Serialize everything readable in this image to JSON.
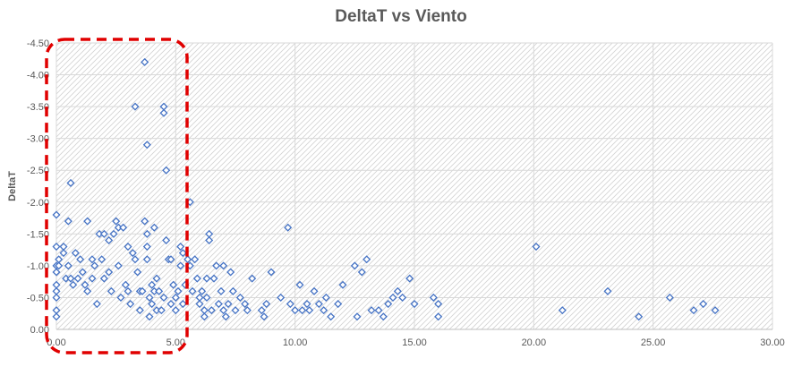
{
  "chart_data": {
    "type": "scatter",
    "title": "DeltaT vs Viento",
    "xlabel": "",
    "ylabel": "DeltaT",
    "xlim": [
      0,
      30
    ],
    "ylim": [
      0,
      -4.5
    ],
    "y_reversed": true,
    "grid": true,
    "x_ticks": [
      "0.00",
      "5.00",
      "10.00",
      "15.00",
      "20.00",
      "25.00",
      "30.00"
    ],
    "y_ticks": [
      "0.00",
      "-0.50",
      "-1.00",
      "-1.50",
      "-2.00",
      "-2.50",
      "-3.00",
      "-3.50",
      "-4.00",
      "-4.50"
    ],
    "marker_color": "#4472C4",
    "highlight_color": "#E00000",
    "series": [
      {
        "marker": "diamond",
        "points": [
          [
            0.0,
            -1.8
          ],
          [
            0.0,
            -1.3
          ],
          [
            0.0,
            -1.0
          ],
          [
            0.0,
            -0.9
          ],
          [
            0.0,
            -0.7
          ],
          [
            0.0,
            -0.6
          ],
          [
            0.0,
            -0.5
          ],
          [
            0.0,
            -0.3
          ],
          [
            0.0,
            -0.2
          ],
          [
            0.1,
            -1.1
          ],
          [
            0.1,
            -1.0
          ],
          [
            0.3,
            -1.3
          ],
          [
            0.3,
            -1.2
          ],
          [
            0.4,
            -0.8
          ],
          [
            0.5,
            -1.7
          ],
          [
            0.5,
            -1.0
          ],
          [
            0.6,
            -2.3
          ],
          [
            0.6,
            -0.8
          ],
          [
            0.7,
            -0.7
          ],
          [
            0.8,
            -1.2
          ],
          [
            0.9,
            -0.8
          ],
          [
            1.0,
            -1.1
          ],
          [
            1.1,
            -0.9
          ],
          [
            1.2,
            -0.7
          ],
          [
            1.3,
            -1.7
          ],
          [
            1.3,
            -0.6
          ],
          [
            1.5,
            -0.8
          ],
          [
            1.5,
            -1.1
          ],
          [
            1.6,
            -1.0
          ],
          [
            1.7,
            -0.4
          ],
          [
            1.8,
            -1.5
          ],
          [
            1.9,
            -1.1
          ],
          [
            2.0,
            -1.5
          ],
          [
            2.0,
            -0.8
          ],
          [
            2.2,
            -1.4
          ],
          [
            2.2,
            -0.9
          ],
          [
            2.3,
            -0.6
          ],
          [
            2.4,
            -1.5
          ],
          [
            2.5,
            -1.7
          ],
          [
            2.6,
            -1.0
          ],
          [
            2.6,
            -1.6
          ],
          [
            2.7,
            -0.5
          ],
          [
            2.8,
            -1.6
          ],
          [
            2.9,
            -0.7
          ],
          [
            3.0,
            -1.3
          ],
          [
            3.0,
            -0.6
          ],
          [
            3.1,
            -0.4
          ],
          [
            3.2,
            -1.2
          ],
          [
            3.3,
            -3.5
          ],
          [
            3.3,
            -1.1
          ],
          [
            3.4,
            -0.9
          ],
          [
            3.5,
            -0.3
          ],
          [
            3.5,
            -0.6
          ],
          [
            3.6,
            -0.6
          ],
          [
            3.7,
            -4.2
          ],
          [
            3.7,
            -1.7
          ],
          [
            3.8,
            -2.9
          ],
          [
            3.8,
            -1.5
          ],
          [
            3.8,
            -1.3
          ],
          [
            3.8,
            -1.1
          ],
          [
            3.9,
            -0.5
          ],
          [
            3.9,
            -0.2
          ],
          [
            4.0,
            -0.7
          ],
          [
            4.0,
            -0.4
          ],
          [
            4.1,
            -1.6
          ],
          [
            4.1,
            -0.6
          ],
          [
            4.2,
            -0.3
          ],
          [
            4.2,
            -0.8
          ],
          [
            4.3,
            -0.6
          ],
          [
            4.4,
            -0.3
          ],
          [
            4.5,
            -3.4
          ],
          [
            4.5,
            -3.5
          ],
          [
            4.5,
            -0.5
          ],
          [
            4.6,
            -2.5
          ],
          [
            4.6,
            -1.4
          ],
          [
            4.7,
            -1.1
          ],
          [
            4.8,
            -1.1
          ],
          [
            4.8,
            -0.4
          ],
          [
            4.9,
            -0.7
          ],
          [
            5.0,
            -0.5
          ],
          [
            5.0,
            -0.3
          ],
          [
            5.1,
            -0.6
          ],
          [
            5.2,
            -1.3
          ],
          [
            5.2,
            -1.0
          ],
          [
            5.3,
            -1.2
          ],
          [
            5.3,
            -0.4
          ],
          [
            5.4,
            -0.7
          ],
          [
            5.5,
            -1.1
          ],
          [
            5.6,
            -2.0
          ],
          [
            5.6,
            -1.0
          ],
          [
            5.7,
            -0.6
          ],
          [
            5.8,
            -1.1
          ],
          [
            5.9,
            -0.8
          ],
          [
            6.0,
            -0.5
          ],
          [
            6.0,
            -0.4
          ],
          [
            6.1,
            -0.6
          ],
          [
            6.2,
            -0.3
          ],
          [
            6.2,
            -0.2
          ],
          [
            6.3,
            -0.8
          ],
          [
            6.3,
            -0.5
          ],
          [
            6.4,
            -1.5
          ],
          [
            6.4,
            -1.4
          ],
          [
            6.5,
            -0.3
          ],
          [
            6.6,
            -0.8
          ],
          [
            6.7,
            -1.0
          ],
          [
            6.8,
            -0.4
          ],
          [
            6.9,
            -0.6
          ],
          [
            7.0,
            -1.0
          ],
          [
            7.0,
            -0.3
          ],
          [
            7.1,
            -0.2
          ],
          [
            7.2,
            -0.4
          ],
          [
            7.3,
            -0.9
          ],
          [
            7.4,
            -0.6
          ],
          [
            7.5,
            -0.3
          ],
          [
            7.7,
            -0.5
          ],
          [
            7.9,
            -0.4
          ],
          [
            8.0,
            -0.3
          ],
          [
            8.2,
            -0.8
          ],
          [
            8.6,
            -0.3
          ],
          [
            8.7,
            -0.2
          ],
          [
            8.8,
            -0.4
          ],
          [
            9.0,
            -0.9
          ],
          [
            9.4,
            -0.5
          ],
          [
            9.7,
            -1.6
          ],
          [
            9.8,
            -0.4
          ],
          [
            10.0,
            -0.3
          ],
          [
            10.2,
            -0.7
          ],
          [
            10.3,
            -0.3
          ],
          [
            10.5,
            -0.4
          ],
          [
            10.6,
            -0.3
          ],
          [
            10.8,
            -0.6
          ],
          [
            11.0,
            -0.4
          ],
          [
            11.2,
            -0.3
          ],
          [
            11.3,
            -0.5
          ],
          [
            11.5,
            -0.2
          ],
          [
            11.8,
            -0.4
          ],
          [
            12.0,
            -0.7
          ],
          [
            12.5,
            -1.0
          ],
          [
            12.6,
            -0.2
          ],
          [
            12.8,
            -0.9
          ],
          [
            13.0,
            -1.1
          ],
          [
            13.2,
            -0.3
          ],
          [
            13.5,
            -0.3
          ],
          [
            13.7,
            -0.2
          ],
          [
            13.9,
            -0.4
          ],
          [
            14.1,
            -0.5
          ],
          [
            14.3,
            -0.6
          ],
          [
            14.5,
            -0.5
          ],
          [
            14.8,
            -0.8
          ],
          [
            15.0,
            -0.4
          ],
          [
            15.8,
            -0.5
          ],
          [
            16.0,
            -0.2
          ],
          [
            16.0,
            -0.4
          ],
          [
            20.1,
            -1.3
          ],
          [
            21.2,
            -0.3
          ],
          [
            23.1,
            -0.6
          ],
          [
            24.4,
            -0.2
          ],
          [
            25.7,
            -0.5
          ],
          [
            26.7,
            -0.3
          ],
          [
            27.1,
            -0.4
          ],
          [
            27.6,
            -0.3
          ]
        ]
      }
    ]
  }
}
